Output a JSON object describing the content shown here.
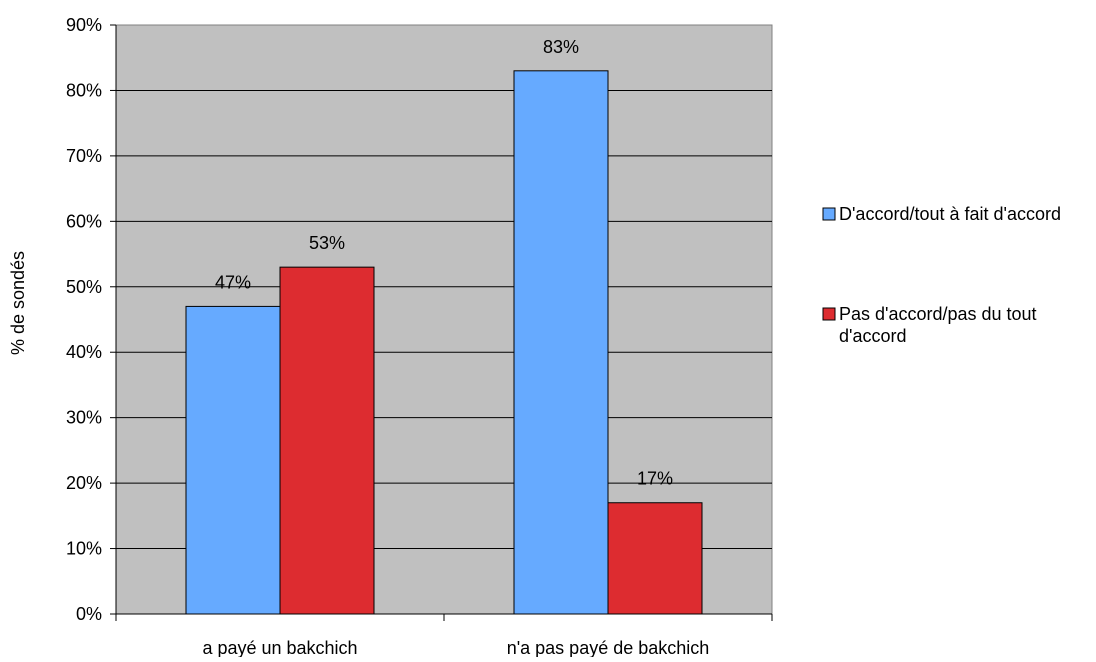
{
  "chart_data": {
    "type": "bar",
    "title": "",
    "xlabel": "",
    "ylabel": "% de sondés",
    "categories": [
      "a payé un bakchich",
      "n'a pas payé de bakchich"
    ],
    "series": [
      {
        "name": "D'accord/tout à fait d'accord",
        "values": [
          47,
          83
        ],
        "color": "#66aaff"
      },
      {
        "name": "Pas d'accord/pas du tout d'accord",
        "values": [
          53,
          17
        ],
        "color": "#dd2c30"
      }
    ],
    "data_labels": [
      [
        "47%",
        "83%"
      ],
      [
        "53%",
        "17%"
      ]
    ],
    "ylim": [
      0,
      90
    ],
    "ytick_step": 10,
    "yticks": [
      "0%",
      "10%",
      "20%",
      "30%",
      "40%",
      "50%",
      "60%",
      "70%",
      "80%",
      "90%"
    ],
    "grid": true,
    "plot_background": "#c0c0c0",
    "legend_position": "right"
  }
}
